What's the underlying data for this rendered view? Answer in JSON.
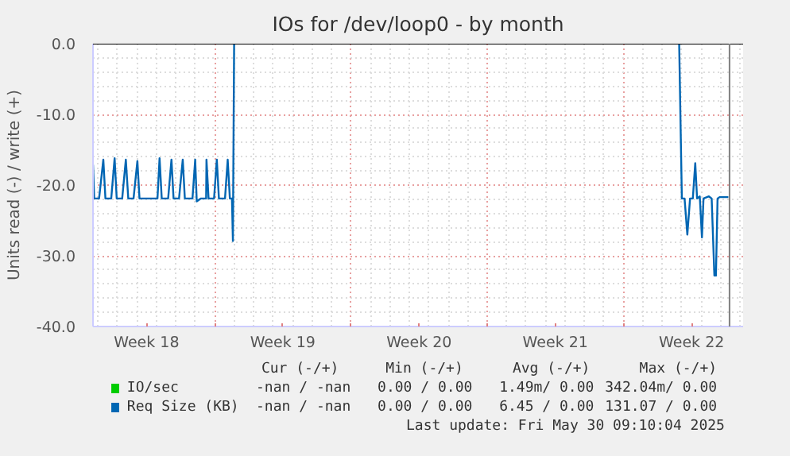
{
  "chart_data": {
    "type": "line",
    "title": "IOs for /dev/loop0 - by month",
    "ylabel": "Units read (-) / write (+)",
    "x": [
      "2025-04-27T18:00",
      "2025-04-27T19:30",
      "2025-04-28T01:30",
      "2025-04-28T06:45",
      "2025-04-28T09:20",
      "2025-04-28T16:30",
      "2025-04-28T20:40",
      "2025-04-28T23:15",
      "2025-04-29T06:00",
      "2025-04-29T10:30",
      "2025-04-29T13:30",
      "2025-04-29T20:00",
      "2025-04-30T00:45",
      "2025-04-30T03:20",
      "2025-04-30T12:00",
      "2025-05-01T01:30",
      "2025-05-01T04:05",
      "2025-05-01T06:45",
      "2025-05-01T14:40",
      "2025-05-01T18:45",
      "2025-05-01T21:20",
      "2025-05-02T04:05",
      "2025-05-02T08:40",
      "2025-05-02T11:15",
      "2025-05-02T20:40",
      "2025-05-03T00:00",
      "2025-05-03T01:55",
      "2025-05-03T06:45",
      "2025-05-03T13:30",
      "2025-05-03T13:55",
      "2025-05-03T16:30",
      "2025-05-03T23:15",
      "2025-05-04T02:40",
      "2025-05-04T05:15",
      "2025-05-04T12:45",
      "2025-05-04T16:05",
      "2025-05-04T18:45",
      "2025-05-04T21:20",
      "2025-05-04T22:30",
      "2025-05-05T00:00",
      "2025-05-05T01:10",
      "2025-05-27T19:10",
      "2025-05-27T20:40",
      "2025-05-28T00:00",
      "2025-05-28T03:20",
      "2025-05-28T06:45",
      "2025-05-28T10:05",
      "2025-05-28T13:30",
      "2025-05-28T16:30",
      "2025-05-28T18:45",
      "2025-05-28T22:05",
      "2025-05-29T00:45",
      "2025-05-29T02:40",
      "2025-05-29T09:20",
      "2025-05-29T12:45",
      "2025-05-29T16:05",
      "2025-05-29T18:00",
      "2025-05-29T20:00",
      "2025-05-29T22:30",
      "2025-05-30T09:20"
    ],
    "series": [
      {
        "name": "IO/sec",
        "color": "#00cc00",
        "values": [
          null,
          null,
          null,
          null,
          null,
          null,
          null,
          null,
          null,
          null,
          null,
          null,
          null,
          null,
          null,
          null,
          null,
          null,
          null,
          null,
          null,
          null,
          null,
          null,
          null,
          null,
          null,
          null,
          null,
          null,
          null,
          null,
          null,
          null,
          null,
          null,
          null,
          null,
          null,
          null,
          null,
          null,
          null,
          null,
          null,
          null,
          null,
          null,
          null,
          null,
          null,
          null,
          null,
          null,
          null,
          null,
          null,
          null,
          null,
          null
        ]
      },
      {
        "name": "Req Size (KB)",
        "color": "#0066b3",
        "values": [
          -17.1,
          -21.9,
          -21.9,
          -16.4,
          -21.9,
          -21.9,
          -16.2,
          -21.9,
          -21.9,
          -16.4,
          -21.9,
          -21.9,
          -16.6,
          -21.9,
          -21.9,
          -21.9,
          -16.2,
          -21.9,
          -21.9,
          -16.4,
          -21.9,
          -21.9,
          -16.4,
          -21.9,
          -21.9,
          -16.4,
          -22.3,
          -21.9,
          -21.9,
          -16.4,
          -21.9,
          -21.9,
          -16.4,
          -21.9,
          -21.9,
          -16.4,
          -21.9,
          -21.9,
          -27.9,
          0,
          null,
          null,
          0,
          -21.9,
          -21.9,
          -27.0,
          -21.9,
          -21.9,
          -16.9,
          -21.9,
          -21.6,
          -27.4,
          -21.9,
          -21.6,
          -21.9,
          -32.8,
          -32.8,
          -21.9,
          -21.7,
          -21.7
        ]
      }
    ],
    "xlim": [
      "2025-04-27T18:00",
      "2025-05-31T03:30"
    ],
    "ylim": [
      -40,
      0
    ],
    "xticks": [
      {
        "value": "2025-04-30T12:00",
        "label": "Week 18"
      },
      {
        "value": "2025-05-04",
        "label": null
      },
      {
        "value": "2025-05-07T12:00",
        "label": "Week 19"
      },
      {
        "value": "2025-05-11",
        "label": null
      },
      {
        "value": "2025-05-14T12:00",
        "label": "Week 20"
      },
      {
        "value": "2025-05-18",
        "label": null
      },
      {
        "value": "2025-05-21T12:00",
        "label": "Week 21"
      },
      {
        "value": "2025-05-25",
        "label": null
      },
      {
        "value": "2025-05-28T12:00",
        "label": "Week 22"
      }
    ],
    "yticks": [
      {
        "value": 0,
        "label": "0.0"
      },
      {
        "value": -10,
        "label": "-10.0"
      },
      {
        "value": -20,
        "label": "-20.0"
      },
      {
        "value": -30,
        "label": "-30.0"
      },
      {
        "value": -40,
        "label": "-40.0"
      }
    ],
    "ref_lines": [
      {
        "axis": "y",
        "value": 0,
        "label": null,
        "color": "#000000"
      },
      {
        "axis": "x",
        "value": "2025-05-30T10:45",
        "label": null,
        "color": "#808080"
      }
    ],
    "grid": true,
    "legend": "bottom",
    "annotations": [
      "Cur (-/+)",
      "Min (-/+)",
      "Avg (-/+)",
      "Max (-/+)",
      "-nan / -nan",
      "0.00 / 0.00",
      "1.49m/ 0.00",
      "342.04m/ 0.00",
      "-nan / -nan",
      "0.00 / 0.00",
      "6.45 / 0.00",
      "131.07 / 0.00",
      "Last update: Fri May 30 09:10:04 2025"
    ]
  }
}
